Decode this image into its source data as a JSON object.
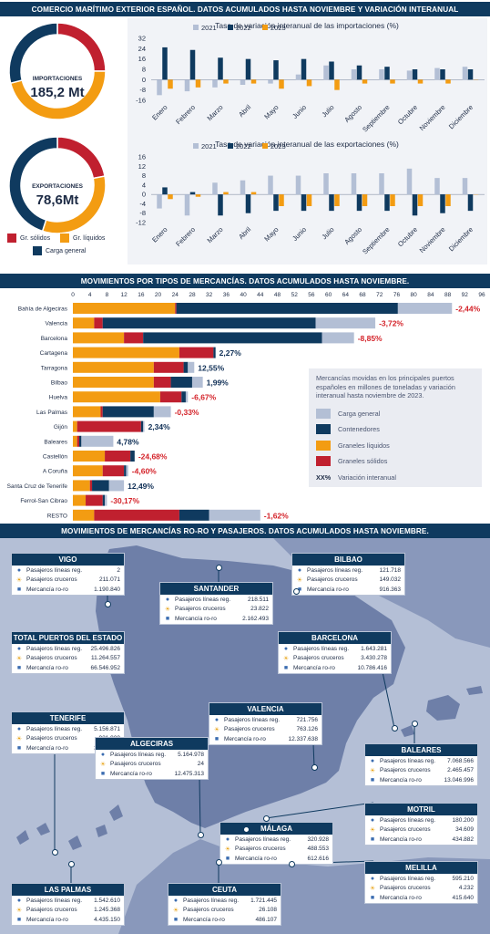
{
  "header": {
    "top_title": "COMERCIO MARÍTIMO EXTERIOR ESPAÑOL. DATOS ACUMULADOS HASTA NOVIEMBRE Y VARIACIÓN INTERANUAL",
    "mid_title": "MOVIMIENTOS POR TIPOS DE MERCANCÍAS. DATOS ACUMULADOS HASTA NOVIEMBRE.",
    "bottom_title": "MOVIMIENTOS DE MERCANCÍAS RO-RO Y PASAJEROS. DATOS ACUMULADOS HASTA NOVIEMBRE."
  },
  "colors": {
    "navy": "#0f3a5f",
    "orange": "#f39c12",
    "red": "#c0202f",
    "gray": "#b3bfd5",
    "dark_navy": "#0e2e55",
    "red_text": "#d4232a",
    "map_sea": "#b4bfd6",
    "map_land": "#6e7fa8"
  },
  "donuts": [
    {
      "label": "IMPORTACIONES",
      "value": "185,2 Mt",
      "segments": [
        {
          "name": "Gr. sólidos",
          "share": 0.25
        },
        {
          "name": "Gr. líquidos",
          "share": 0.46
        },
        {
          "name": "Carga general",
          "share": 0.29
        }
      ]
    },
    {
      "label": "EXPORTACIONES",
      "value": "78,6Mt",
      "segments": [
        {
          "name": "Gr. sólidos",
          "share": 0.22
        },
        {
          "name": "Gr. líquidos",
          "share": 0.33
        },
        {
          "name": "Carga general",
          "share": 0.45
        }
      ]
    }
  ],
  "donut_legend": [
    "Gr. sólidos",
    "Gr. líquidos",
    "Carga general"
  ],
  "chart_data": [
    {
      "type": "bar",
      "title": "Tasa de variación interanual de las importaciones (%)",
      "categories": [
        "Enero",
        "Febrero",
        "Marzo",
        "Abril",
        "Mayo",
        "Junio",
        "Julio",
        "Agosto",
        "Septiembre",
        "Octubre",
        "Noviembre",
        "Diciembre"
      ],
      "series": [
        {
          "name": "2021",
          "values": [
            -12,
            -9,
            -6,
            -4,
            -3,
            4,
            11,
            8,
            8,
            7,
            9,
            10
          ]
        },
        {
          "name": "2022",
          "values": [
            25,
            23,
            17,
            16,
            15,
            16,
            14,
            11,
            10,
            8,
            8,
            8
          ]
        },
        {
          "name": "2023",
          "values": [
            -7,
            -6,
            -3,
            -3,
            -7,
            -5,
            -8,
            -3,
            -3,
            -3,
            -3,
            0
          ]
        }
      ],
      "yticks": [
        32,
        24,
        16,
        8,
        0,
        -8,
        -16
      ],
      "ylim": [
        -16,
        32
      ]
    },
    {
      "type": "bar",
      "title": "Tasa de variación interanual de las exportaciones (%)",
      "categories": [
        "Enero",
        "Febrero",
        "Marzo",
        "Abril",
        "Mayo",
        "Junio",
        "Julio",
        "Agosto",
        "Septiembre",
        "Octubre",
        "Noviembre",
        "Diciembre"
      ],
      "series": [
        {
          "name": "2021",
          "values": [
            -6,
            -9,
            5,
            6,
            8,
            8,
            9,
            9,
            9,
            11,
            7,
            7
          ]
        },
        {
          "name": "2022",
          "values": [
            3,
            1,
            -9,
            -8,
            -7,
            -7,
            -7,
            -7,
            -7,
            -9,
            -8,
            -7
          ]
        },
        {
          "name": "2023",
          "values": [
            -2,
            -1,
            1,
            1,
            -5,
            -5,
            -5,
            -5,
            -5,
            -5,
            -5,
            0
          ]
        }
      ],
      "yticks": [
        16,
        12,
        8,
        4,
        0,
        -4,
        -8,
        -12
      ],
      "ylim": [
        -12,
        16
      ]
    },
    {
      "type": "bar",
      "stacked": true,
      "orientation": "horizontal",
      "title": "MOVIMIENTOS POR TIPOS DE MERCANCÍAS. DATOS ACUMULADOS HASTA NOVIEMBRE.",
      "xticks": [
        0,
        4,
        8,
        12,
        16,
        20,
        24,
        28,
        32,
        36,
        40,
        44,
        48,
        52,
        56,
        60,
        64,
        68,
        72,
        76,
        80,
        84,
        88,
        92,
        96
      ],
      "xlim": [
        0,
        96
      ],
      "categories": [
        "Bahía de Algeciras",
        "Valencia",
        "Barcelona",
        "Cartagena",
        "Tarragona",
        "Bilbao",
        "Huelva",
        "Las Palmas",
        "Gijón",
        "Baleares",
        "Castellón",
        "A Coruña",
        "Santa Cruz de Tenerife",
        "Ferrol-San Cibrao",
        "RESTO"
      ],
      "series": [
        {
          "name": "Graneles líquidos",
          "values": [
            24.0,
            5.0,
            12.0,
            25.0,
            19.0,
            19.0,
            20.5,
            6.5,
            1.0,
            1.0,
            7.5,
            7.0,
            4.0,
            3.0,
            5.0
          ]
        },
        {
          "name": "Graneles sólidos",
          "values": [
            0.3,
            2.0,
            4.5,
            8.0,
            7.0,
            4.0,
            5.0,
            0.5,
            15.0,
            0.5,
            6.0,
            5.0,
            0.5,
            4.0,
            20.0
          ]
        },
        {
          "name": "Contenedores",
          "values": [
            52.0,
            50.0,
            42.0,
            0.5,
            1.0,
            5.0,
            1.0,
            12.0,
            0.5,
            0.5,
            1.0,
            0.5,
            4.0,
            0.5,
            7.0
          ]
        },
        {
          "name": "Carga general",
          "values": [
            12.7,
            14.0,
            7.5,
            0.0,
            1.5,
            2.5,
            0.5,
            4.0,
            0.3,
            7.5,
            0.0,
            0.5,
            3.5,
            0.5,
            12.0
          ]
        }
      ],
      "variation": [
        "-2,44%",
        "-3,72%",
        "-8,85%",
        "2,27%",
        "12,55%",
        "1,99%",
        "-6,67%",
        "-0,33%",
        "2,34%",
        "4,78%",
        "-24,68%",
        "-4,60%",
        "12,49%",
        "-30,17%",
        "-1,62%"
      ],
      "legend_intro": "Mercancías movidas en los principales puertos españoles en millones de toneladas y variación interanual hasta noviembre de 2023.",
      "legend": [
        "Carga general",
        "Contenedores",
        "Graneles líquidos",
        "Graneles sólidos"
      ],
      "legend_var_key": "XX%",
      "legend_var_label": "Variación interanual"
    }
  ],
  "map_row_labels": [
    "Pasajeros líneas reg.",
    "Pasajeros cruceros",
    "Mercancía ro-ro"
  ],
  "ports": [
    {
      "name": "VIGO",
      "values": [
        "2",
        "211.071",
        "1.190.840"
      ]
    },
    {
      "name": "BILBAO",
      "values": [
        "121.718",
        "149.032",
        "916.363"
      ]
    },
    {
      "name": "SANTANDER",
      "values": [
        "218.511",
        "23.822",
        "2.162.493"
      ]
    },
    {
      "name": "TOTAL PUERTOS DEL ESTADO",
      "values": [
        "25.496.826",
        "11.264.557",
        "66.546.952"
      ]
    },
    {
      "name": "BARCELONA",
      "values": [
        "1.643.281",
        "3.430.278",
        "10.786.416"
      ]
    },
    {
      "name": "VALENCIA",
      "values": [
        "721.756",
        "763.126",
        "12.337.638"
      ]
    },
    {
      "name": "TENERIFE",
      "values": [
        "5.156.871",
        "921.909",
        "3.989.580"
      ]
    },
    {
      "name": "BALEARES",
      "values": [
        "7.068.566",
        "2.465.457",
        "13.046.996"
      ]
    },
    {
      "name": "ALGECIRAS",
      "values": [
        "5.164.978",
        "24",
        "12.475.313"
      ]
    },
    {
      "name": "MOTRIL",
      "values": [
        "180.200",
        "34.609",
        "434.882"
      ]
    },
    {
      "name": "MÁLAGA",
      "values": [
        "320.928",
        "488.553",
        "612.616"
      ]
    },
    {
      "name": "MELILLA",
      "values": [
        "595.210",
        "4.232",
        "415.640"
      ]
    },
    {
      "name": "LAS PALMAS",
      "values": [
        "1.542.610",
        "1.245.368",
        "4.435.150"
      ]
    },
    {
      "name": "CEUTA",
      "values": [
        "1.721.445",
        "26.108",
        "486.107"
      ]
    }
  ]
}
